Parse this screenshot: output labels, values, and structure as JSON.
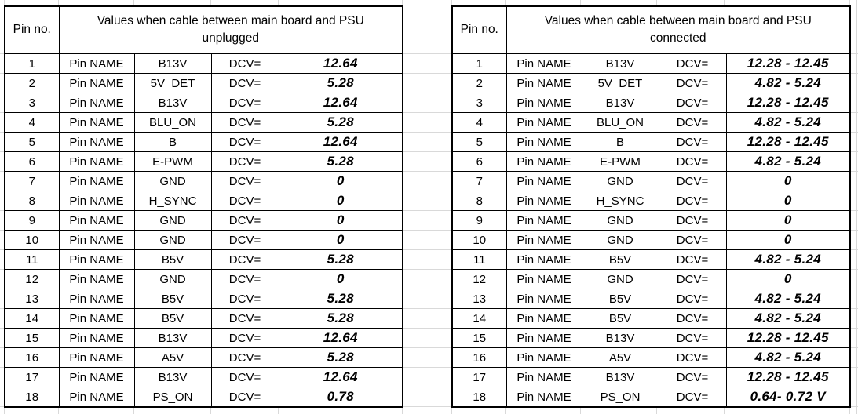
{
  "colors": {
    "background": "#ffffff",
    "gridline": "#d9d9d9",
    "table_border": "#000000",
    "text": "#000000"
  },
  "tables": [
    {
      "id": "unplugged",
      "pin_no_header": "Pin no.",
      "values_header_line1": "Values when cable between main board and PSU",
      "values_header_line2": "unplugged",
      "pin_label": "Pin NAME",
      "dcv_label": "DCV=",
      "rows": [
        {
          "no": "1",
          "name": "B13V",
          "value": "12.64"
        },
        {
          "no": "2",
          "name": "5V_DET",
          "value": "5.28"
        },
        {
          "no": "3",
          "name": "B13V",
          "value": "12.64"
        },
        {
          "no": "4",
          "name": "BLU_ON",
          "value": "5.28"
        },
        {
          "no": "5",
          "name": "B",
          "value": "12.64"
        },
        {
          "no": "6",
          "name": "E-PWM",
          "value": "5.28"
        },
        {
          "no": "7",
          "name": "GND",
          "value": "0"
        },
        {
          "no": "8",
          "name": "H_SYNC",
          "value": "0"
        },
        {
          "no": "9",
          "name": "GND",
          "value": "0"
        },
        {
          "no": "10",
          "name": "GND",
          "value": "0"
        },
        {
          "no": "11",
          "name": "B5V",
          "value": "5.28"
        },
        {
          "no": "12",
          "name": "GND",
          "value": "0"
        },
        {
          "no": "13",
          "name": "B5V",
          "value": "5.28"
        },
        {
          "no": "14",
          "name": "B5V",
          "value": "5.28"
        },
        {
          "no": "15",
          "name": "B13V",
          "value": "12.64"
        },
        {
          "no": "16",
          "name": "A5V",
          "value": "5.28"
        },
        {
          "no": "17",
          "name": "B13V",
          "value": "12.64"
        },
        {
          "no": "18",
          "name": "PS_ON",
          "value": "0.78"
        }
      ]
    },
    {
      "id": "connected",
      "pin_no_header": "Pin no.",
      "values_header_line1": "Values when cable between main board and PSU",
      "values_header_line2": "connected",
      "pin_label": "Pin NAME",
      "dcv_label": "DCV=",
      "rows": [
        {
          "no": "1",
          "name": "B13V",
          "value": "12.28 - 12.45"
        },
        {
          "no": "2",
          "name": "5V_DET",
          "value": "4.82 - 5.24"
        },
        {
          "no": "3",
          "name": "B13V",
          "value": "12.28 - 12.45"
        },
        {
          "no": "4",
          "name": "BLU_ON",
          "value": "4.82 - 5.24"
        },
        {
          "no": "5",
          "name": "B",
          "value": "12.28 - 12.45"
        },
        {
          "no": "6",
          "name": "E-PWM",
          "value": "4.82 - 5.24"
        },
        {
          "no": "7",
          "name": "GND",
          "value": "0"
        },
        {
          "no": "8",
          "name": "H_SYNC",
          "value": "0"
        },
        {
          "no": "9",
          "name": "GND",
          "value": "0"
        },
        {
          "no": "10",
          "name": "GND",
          "value": "0"
        },
        {
          "no": "11",
          "name": "B5V",
          "value": "4.82 - 5.24"
        },
        {
          "no": "12",
          "name": "GND",
          "value": "0"
        },
        {
          "no": "13",
          "name": "B5V",
          "value": "4.82 - 5.24"
        },
        {
          "no": "14",
          "name": "B5V",
          "value": "4.82 - 5.24"
        },
        {
          "no": "15",
          "name": "B13V",
          "value": "12.28 - 12.45"
        },
        {
          "no": "16",
          "name": "A5V",
          "value": "4.82 - 5.24"
        },
        {
          "no": "17",
          "name": "B13V",
          "value": "12.28 - 12.45"
        },
        {
          "no": "18",
          "name": "PS_ON",
          "value": "0.64- 0.72 V"
        }
      ]
    }
  ]
}
